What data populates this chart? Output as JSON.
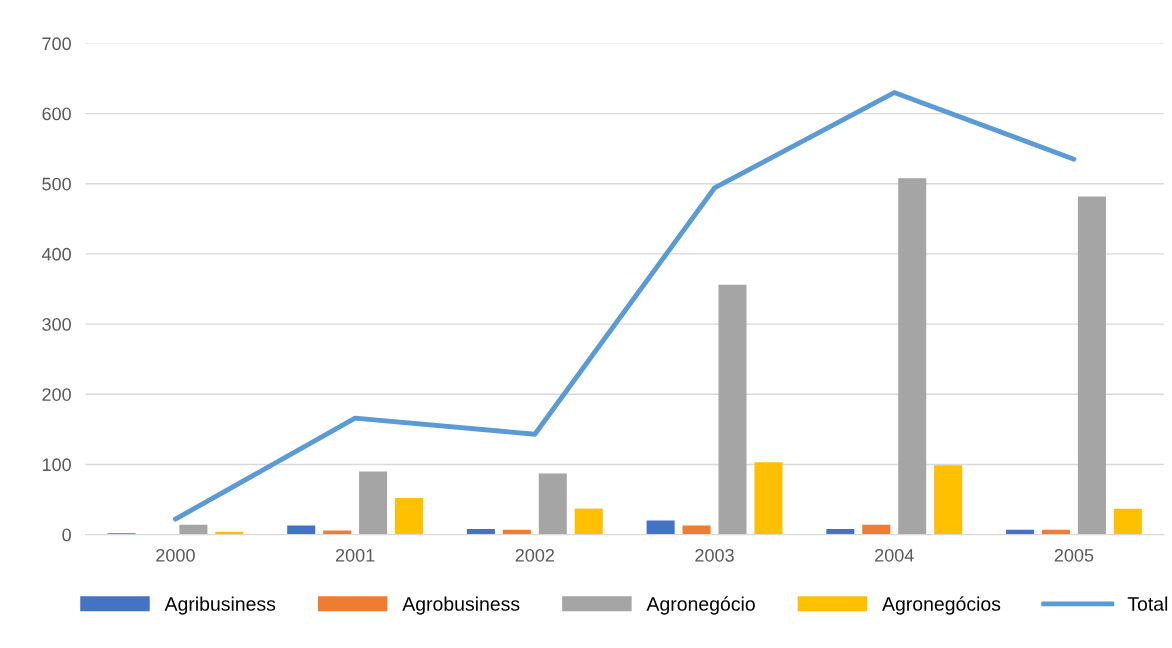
{
  "chart_data": {
    "type": "bar",
    "categories": [
      "2000",
      "2001",
      "2002",
      "2003",
      "2004",
      "2005"
    ],
    "series": [
      {
        "name": "Agribusiness",
        "color": "#4472c4",
        "values": [
          2,
          13,
          8,
          20,
          8,
          7
        ]
      },
      {
        "name": "Agrobusiness",
        "color": "#ed7d31",
        "values": [
          0,
          6,
          7,
          13,
          14,
          7
        ]
      },
      {
        "name": "Agronegócio",
        "color": "#a5a5a5",
        "values": [
          14,
          90,
          87,
          356,
          508,
          482
        ]
      },
      {
        "name": "Agronegócios",
        "color": "#ffc000",
        "values": [
          4,
          52,
          37,
          103,
          99,
          37
        ]
      },
      {
        "name": "Total",
        "type": "line",
        "color": "#5b9bd5",
        "values": [
          22,
          166,
          143,
          494,
          630,
          535
        ]
      }
    ],
    "ylim": [
      0,
      700
    ],
    "yticks": [
      0,
      100,
      200,
      300,
      400,
      500,
      600,
      700
    ],
    "grid": "y",
    "legend": "bottom",
    "marker": "none"
  }
}
